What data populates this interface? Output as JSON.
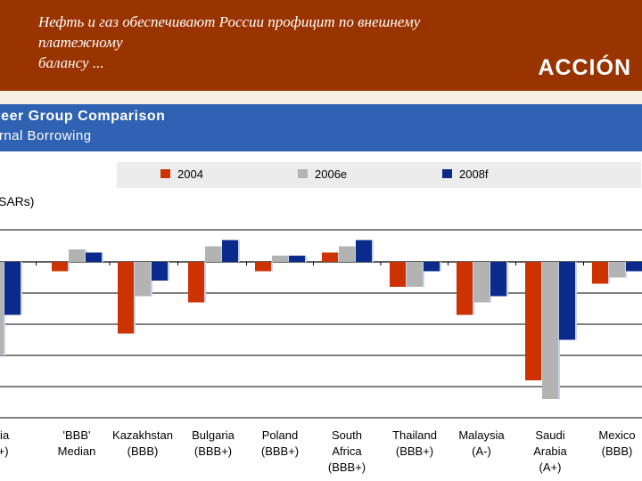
{
  "header": {
    "title_lines": [
      "Нефть и газ обеспечивают России профицит по внешнему",
      "платежному",
      "балансу ..."
    ],
    "logo": "ACCIÓN"
  },
  "banner": {
    "title": "Peer Group Comparison",
    "subtitle": "ernal Borrowing"
  },
  "chart_data": {
    "type": "bar",
    "ylabel": "SARs)",
    "ylim": [
      -48,
      12
    ],
    "categories": [
      {
        "lines": [
          "ussia",
          "BB+)"
        ]
      },
      {
        "lines": [
          "'BBB'",
          "Median"
        ]
      },
      {
        "lines": [
          "Kazakhstan",
          "(BBB)"
        ]
      },
      {
        "lines": [
          "Bulgaria",
          "(BBB+)"
        ]
      },
      {
        "lines": [
          "Poland",
          "(BBB+)"
        ]
      },
      {
        "lines": [
          "South",
          "Africa",
          "(BBB+)"
        ]
      },
      {
        "lines": [
          "Thailand",
          "(BBB+)"
        ]
      },
      {
        "lines": [
          "Malaysia",
          "(A-)"
        ]
      },
      {
        "lines": [
          "Saudi",
          "Arabia",
          "(A+)"
        ]
      },
      {
        "lines": [
          "Mexico",
          "(BBB)"
        ]
      }
    ],
    "series": [
      {
        "name": "2004",
        "color": "#cc3300",
        "values": [
          null,
          -3,
          -23,
          -13,
          -3,
          3,
          -8,
          -17,
          -38,
          -7
        ]
      },
      {
        "name": "2006e",
        "color": "#b3b3b3",
        "values": [
          -30,
          4,
          -11,
          5,
          2,
          5,
          -8,
          -13,
          -44,
          -5
        ]
      },
      {
        "name": "2008f",
        "color": "#0a2a8c",
        "values": [
          -17,
          3,
          -6,
          7,
          2,
          7,
          -3,
          -11,
          -25,
          -3
        ]
      }
    ]
  }
}
